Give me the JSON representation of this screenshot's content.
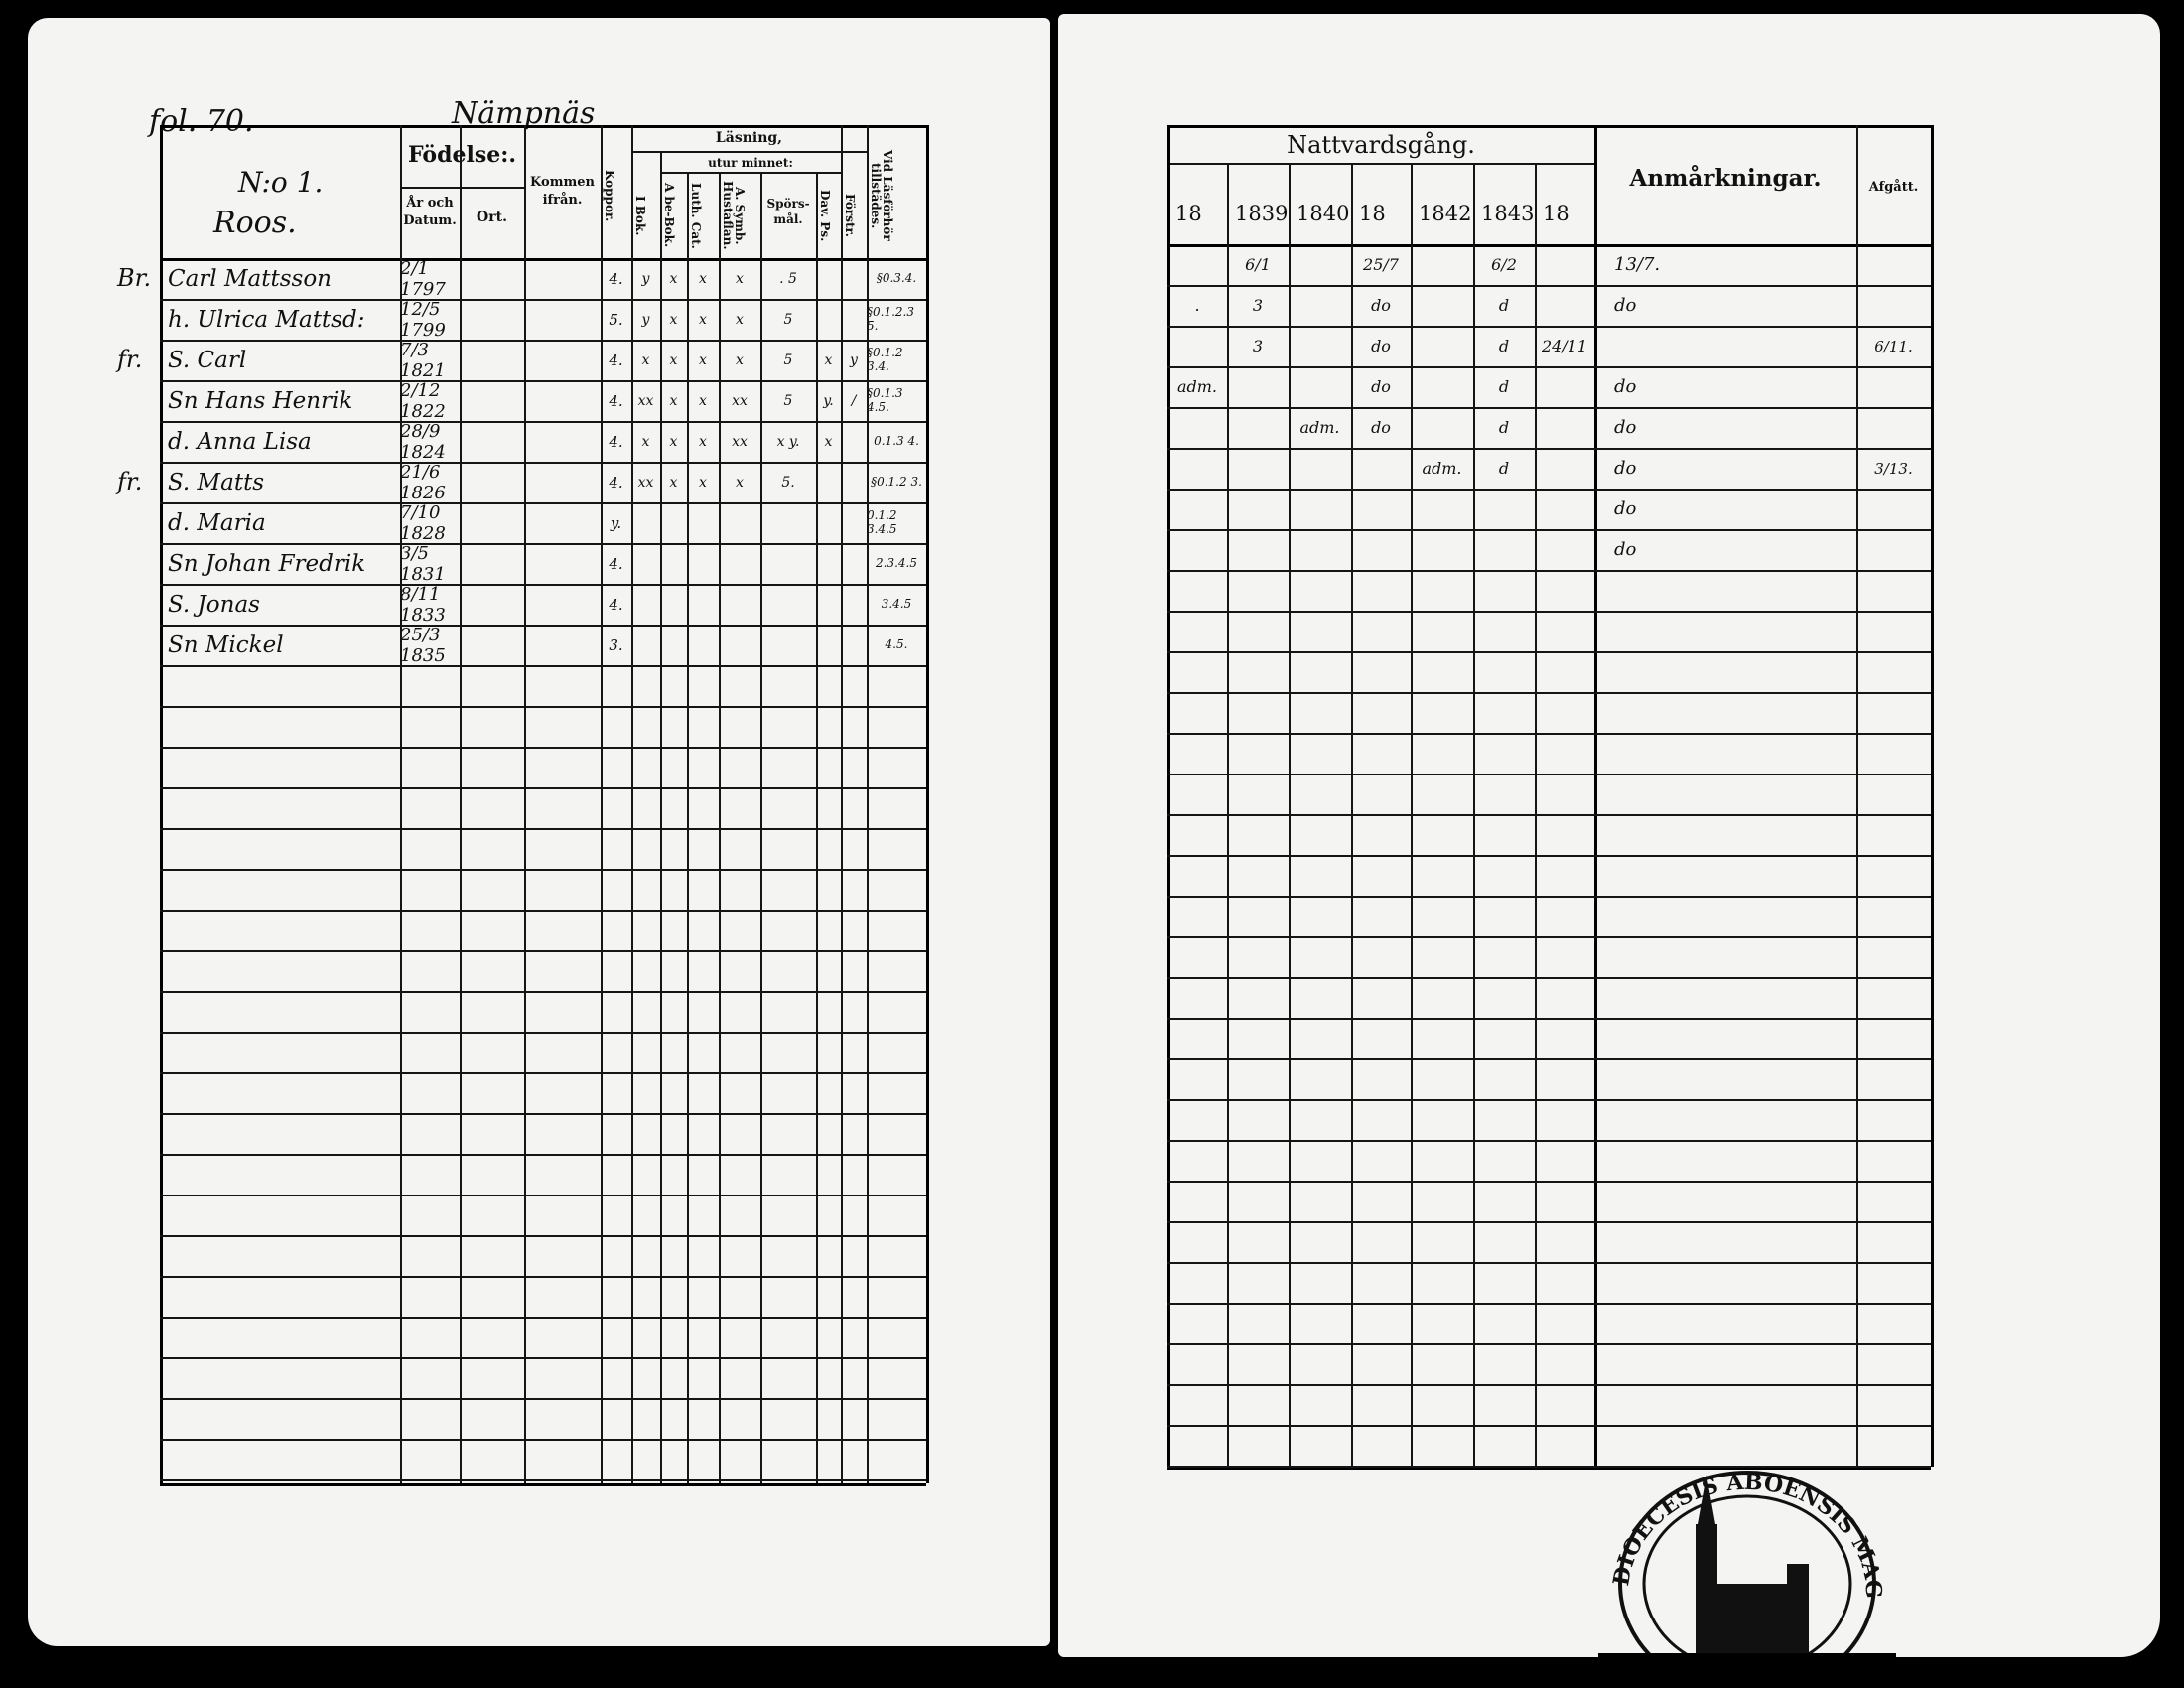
{
  "left_page": {
    "folio": "fol. 70.",
    "village": "Nämpnäs",
    "household": {
      "number": "N:o 1.",
      "farm": "Roos."
    },
    "headers": {
      "fodelse": "Födelse:.",
      "ar_och_datum": "År och Datum.",
      "ort": "Ort.",
      "kommen_ifran": "Kommen ifrån.",
      "koppor": "Koppor.",
      "lasning": "Läsning,",
      "utur_minnet": "utur minnet:",
      "i_bok": "I Bok.",
      "a_be_bok": "A be-Bok.",
      "luth_cat": "Luth. Cat.",
      "a_symb": "A. Symb. Hustaflan.",
      "sporsmal": "Spörs-mål.",
      "dav_ps": "Dav. Ps.",
      "forstr": "Förstr.",
      "vid_lasforhor": "Vid Läsförhör tillstädes."
    },
    "rows": [
      {
        "margin": "Br.",
        "name": "Carl Mattsson",
        "born": "2/1 1797",
        "koppor": "4.",
        "marks": [
          "y",
          "x",
          "x",
          "x",
          ". 5",
          "",
          ""
        ],
        "vid": "§0.3.4."
      },
      {
        "margin": "",
        "name": "h. Ulrica Mattsd:",
        "born": "12/5 1799",
        "koppor": "5.",
        "marks": [
          "y",
          "x",
          "x",
          "x",
          "5",
          "",
          ""
        ],
        "vid": "§0.1.2.3 5."
      },
      {
        "margin": "fr.",
        "name": "S. Carl",
        "born": "7/3 1821",
        "koppor": "4.",
        "marks": [
          "x",
          "x",
          "x",
          "x",
          "5",
          "x",
          "y"
        ],
        "vid": "§0.1.2 3.4."
      },
      {
        "margin": "",
        "name": "Sn Hans Henrik",
        "born": "2/12 1822",
        "koppor": "4.",
        "marks": [
          "xx",
          "x",
          "x",
          "xx",
          "5",
          "y.",
          "/"
        ],
        "vid": "§0.1.3 4.5."
      },
      {
        "margin": "",
        "name": "d. Anna Lisa",
        "born": "28/9 1824",
        "koppor": "4.",
        "marks": [
          "x",
          "x",
          "x",
          "xx",
          "x y.",
          "x",
          ""
        ],
        "vid": "0.1.3 4."
      },
      {
        "margin": "fr.",
        "name": "S. Matts",
        "born": "21/6 1826",
        "koppor": "4.",
        "marks": [
          "xx",
          "x",
          "x",
          "x",
          "5.",
          "",
          ""
        ],
        "vid": "§0.1.2 3."
      },
      {
        "margin": "",
        "name": "d. Maria",
        "born": "7/10 1828",
        "koppor": "y.",
        "marks": [
          "",
          "",
          "",
          "",
          "",
          "",
          ""
        ],
        "vid": "0.1.2 3.4.5"
      },
      {
        "margin": "",
        "name": "Sn Johan Fredrik",
        "born": "3/5 1831",
        "koppor": "4.",
        "marks": [
          "",
          "",
          "",
          "",
          "",
          "",
          ""
        ],
        "vid": "2.3.4.5"
      },
      {
        "margin": "",
        "name": "S. Jonas",
        "born": "8/11 1833",
        "koppor": "4.",
        "marks": [
          "",
          "",
          "",
          "",
          "",
          "",
          ""
        ],
        "vid": "3.4.5"
      },
      {
        "margin": "",
        "name": "Sn Mickel",
        "born": "25/3 1835",
        "koppor": "3.",
        "marks": [
          "",
          "",
          "",
          "",
          "",
          "",
          ""
        ],
        "vid": "4.5."
      }
    ]
  },
  "right_page": {
    "headers": {
      "nattvardsgang": "Nattvardsgång.",
      "years": [
        "18",
        "1839",
        "1840",
        "18",
        "1842",
        "1843",
        "18"
      ],
      "anmarkningar": "Anmårkningar.",
      "afgatt": "Afgått."
    },
    "rows": [
      {
        "cells": [
          "",
          "6/1",
          "",
          "25/7",
          "",
          "6/2",
          ""
        ],
        "anm": "13/7.",
        "afg": ""
      },
      {
        "cells": [
          ".",
          "3",
          "",
          "do",
          "",
          "d",
          ""
        ],
        "anm": "do",
        "afg": ""
      },
      {
        "cells": [
          "",
          "3",
          "",
          "do",
          "",
          "d",
          "24/11"
        ],
        "anm": "",
        "afg": "6/11."
      },
      {
        "cells": [
          "adm.",
          "",
          "",
          "do",
          "",
          "d",
          ""
        ],
        "anm": "do",
        "afg": ""
      },
      {
        "cells": [
          "",
          "",
          "adm.",
          "do",
          "",
          "d",
          ""
        ],
        "anm": "do",
        "afg": ""
      },
      {
        "cells": [
          "",
          "",
          "",
          "",
          "adm.",
          "d",
          ""
        ],
        "anm": "do",
        "afg": "3/13."
      },
      {
        "cells": [
          "",
          "",
          "",
          "",
          "",
          "",
          ""
        ],
        "anm": "do",
        "afg": ""
      },
      {
        "cells": [
          "",
          "",
          "",
          "",
          "",
          "",
          ""
        ],
        "anm": "do",
        "afg": ""
      }
    ]
  },
  "stamp": {
    "text": "DIOECESIS ABOENSIS MAG. INT."
  },
  "colors": {
    "paper": "#f4f4f2",
    "ink": "#111111",
    "background": "#000000"
  }
}
